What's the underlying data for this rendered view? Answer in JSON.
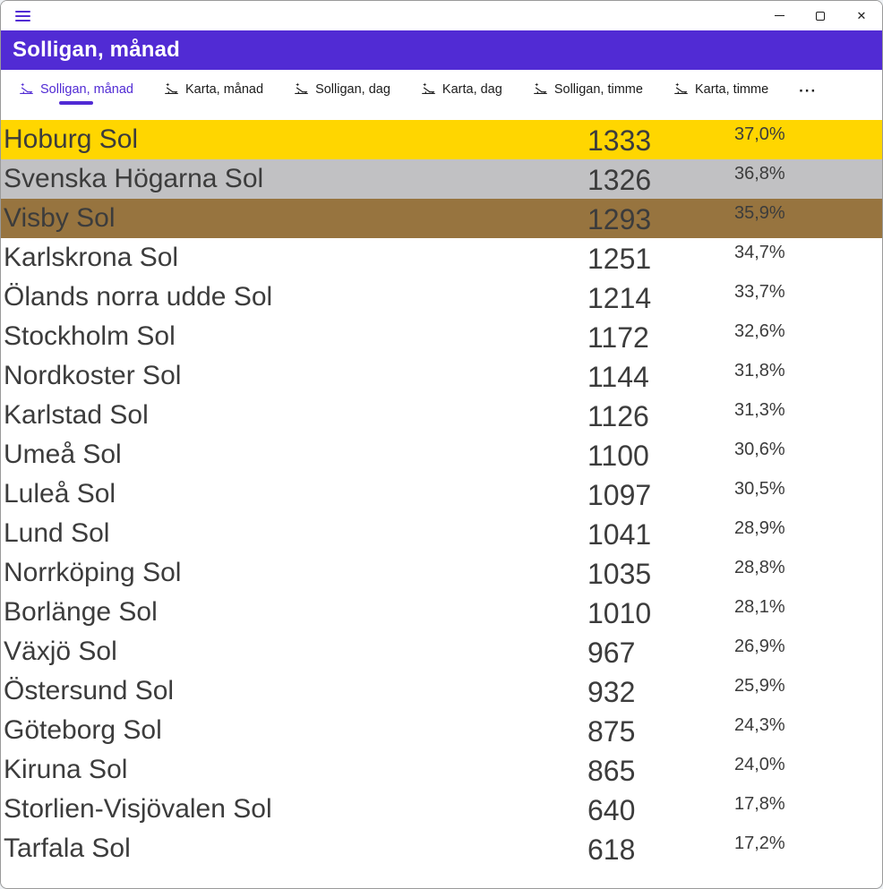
{
  "window": {
    "controls": [
      {
        "name": "minimize"
      },
      {
        "name": "maximize"
      },
      {
        "name": "close"
      }
    ]
  },
  "header": {
    "title": "Solligan, månad"
  },
  "tabs": {
    "items": [
      {
        "label": "Solligan, månad",
        "selected": true
      },
      {
        "label": "Karta, månad",
        "selected": false
      },
      {
        "label": "Solligan, dag",
        "selected": false
      },
      {
        "label": "Karta, dag",
        "selected": false
      },
      {
        "label": "Solligan, timme",
        "selected": false
      },
      {
        "label": "Karta, timme",
        "selected": false
      }
    ],
    "more_label": "···",
    "icon": "beach-lounger-icon"
  },
  "rows": [
    {
      "name": "Hoburg Sol",
      "value": "1333",
      "percent": "37,0%",
      "medal": "gold"
    },
    {
      "name": "Svenska Högarna Sol",
      "value": "1326",
      "percent": "36,8%",
      "medal": "silver"
    },
    {
      "name": "Visby Sol",
      "value": "1293",
      "percent": "35,9%",
      "medal": "bronze"
    },
    {
      "name": "Karlskrona Sol",
      "value": "1251",
      "percent": "34,7%",
      "medal": null
    },
    {
      "name": "Ölands norra udde Sol",
      "value": "1214",
      "percent": "33,7%",
      "medal": null
    },
    {
      "name": "Stockholm Sol",
      "value": "1172",
      "percent": "32,6%",
      "medal": null
    },
    {
      "name": "Nordkoster Sol",
      "value": "1144",
      "percent": "31,8%",
      "medal": null
    },
    {
      "name": "Karlstad Sol",
      "value": "1126",
      "percent": "31,3%",
      "medal": null
    },
    {
      "name": "Umeå Sol",
      "value": "1100",
      "percent": "30,6%",
      "medal": null
    },
    {
      "name": "Luleå Sol",
      "value": "1097",
      "percent": "30,5%",
      "medal": null
    },
    {
      "name": "Lund Sol",
      "value": "1041",
      "percent": "28,9%",
      "medal": null
    },
    {
      "name": "Norrköping Sol",
      "value": "1035",
      "percent": "28,8%",
      "medal": null
    },
    {
      "name": "Borlänge Sol",
      "value": "1010",
      "percent": "28,1%",
      "medal": null
    },
    {
      "name": "Växjö Sol",
      "value": "967",
      "percent": "26,9%",
      "medal": null
    },
    {
      "name": "Östersund Sol",
      "value": "932",
      "percent": "25,9%",
      "medal": null
    },
    {
      "name": "Göteborg Sol",
      "value": "875",
      "percent": "24,3%",
      "medal": null
    },
    {
      "name": "Kiruna Sol",
      "value": "865",
      "percent": "24,0%",
      "medal": null
    },
    {
      "name": "Storlien-Visjövalen Sol",
      "value": "640",
      "percent": "17,8%",
      "medal": null
    },
    {
      "name": "Tarfala Sol",
      "value": "618",
      "percent": "17,2%",
      "medal": null
    }
  ],
  "colors": {
    "accent": "#512BD4",
    "gold": "#FFD600",
    "silver": "#C1C1C3",
    "bronze": "#97743F"
  }
}
